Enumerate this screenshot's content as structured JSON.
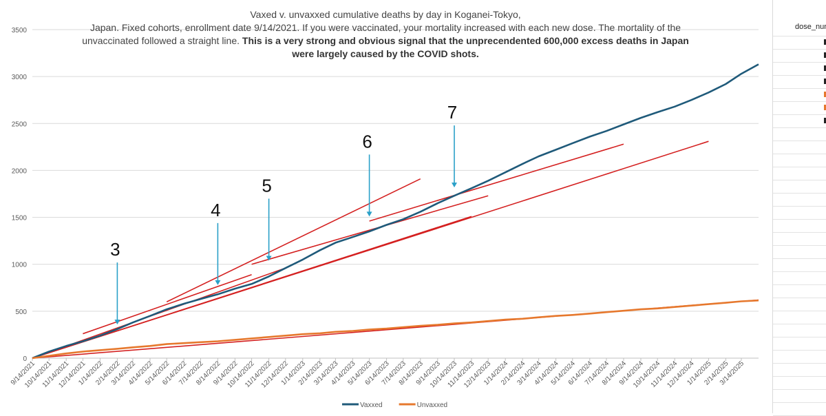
{
  "chart_data": {
    "type": "line",
    "title_lines": [
      {
        "plain": "Vaxed v. unvaxxed cumulative deaths by day in Koganei-Tokyo,",
        "bold": ""
      },
      {
        "plain": "Japan. Fixed cohorts, enrollment date 9/14/2021.  If you were vaccinated, your mortality increased with each new dose. The mortality of the",
        "bold": ""
      },
      {
        "plain": "unvaccinated followed a straight line. ",
        "bold": "This is a very strong and obvious signal that the unprecendented 600,000 excess deaths in Japan"
      },
      {
        "plain": "",
        "bold": "were largely caused by the COVID shots."
      }
    ],
    "xlabel": "",
    "ylabel": "",
    "ylim": [
      0,
      3500
    ],
    "yticks": [
      0,
      500,
      1000,
      1500,
      2000,
      2500,
      3000,
      3500
    ],
    "xlim": [
      "2021-09-14",
      "2025-04-14"
    ],
    "xtick_labels": [
      "9/14/2021",
      "10/14/2021",
      "11/14/2021",
      "12/14/2021",
      "1/14/2022",
      "2/14/2022",
      "3/14/2022",
      "4/14/2022",
      "5/14/2022",
      "6/14/2022",
      "7/14/2022",
      "8/14/2022",
      "9/14/2022",
      "10/14/2022",
      "11/14/2022",
      "12/14/2022",
      "1/14/2023",
      "2/14/2023",
      "3/14/2023",
      "4/14/2023",
      "5/14/2023",
      "6/14/2023",
      "7/14/2023",
      "8/14/2023",
      "9/14/2023",
      "10/14/2023",
      "11/14/2023",
      "12/14/2023",
      "1/14/2024",
      "2/14/2024",
      "3/14/2024",
      "4/14/2024",
      "5/14/2024",
      "6/14/2024",
      "7/14/2024",
      "8/14/2024",
      "9/14/2024",
      "10/14/2024",
      "11/14/2024",
      "12/14/2024",
      "1/14/2025",
      "2/14/2025",
      "3/14/2025"
    ],
    "grid": "horizontal",
    "legend_position": "bottom",
    "series": [
      {
        "name": "Vaxxed",
        "color": "#1f5a7a",
        "x": [
          "2021-09-14",
          "2021-10-14",
          "2021-11-14",
          "2021-12-14",
          "2022-01-14",
          "2022-02-14",
          "2022-03-14",
          "2022-04-14",
          "2022-05-14",
          "2022-06-14",
          "2022-07-14",
          "2022-08-14",
          "2022-09-14",
          "2022-10-14",
          "2022-11-14",
          "2022-12-14",
          "2023-01-14",
          "2023-02-14",
          "2023-03-14",
          "2023-04-14",
          "2023-05-14",
          "2023-06-14",
          "2023-07-14",
          "2023-08-14",
          "2023-09-14",
          "2023-10-14",
          "2023-11-14",
          "2023-12-14",
          "2024-01-14",
          "2024-02-14",
          "2024-03-14",
          "2024-04-14",
          "2024-05-14",
          "2024-06-14",
          "2024-07-14",
          "2024-08-14",
          "2024-09-14",
          "2024-10-14",
          "2024-11-14",
          "2024-12-14",
          "2025-01-14",
          "2025-02-14",
          "2025-03-14",
          "2025-04-14"
        ],
        "y": [
          0,
          70,
          130,
          180,
          240,
          310,
          380,
          450,
          520,
          580,
          630,
          680,
          740,
          790,
          870,
          960,
          1050,
          1150,
          1230,
          1290,
          1350,
          1420,
          1480,
          1560,
          1650,
          1730,
          1810,
          1890,
          1980,
          2070,
          2150,
          2220,
          2290,
          2360,
          2420,
          2490,
          2560,
          2620,
          2680,
          2750,
          2830,
          2920,
          3030,
          3130
        ]
      },
      {
        "name": "Unvaxxed",
        "color": "#e6782d",
        "x": [
          "2021-09-14",
          "2021-10-14",
          "2021-11-14",
          "2021-12-14",
          "2022-01-14",
          "2022-02-14",
          "2022-03-14",
          "2022-04-14",
          "2022-05-14",
          "2022-06-14",
          "2022-07-14",
          "2022-08-14",
          "2022-09-14",
          "2022-10-14",
          "2022-11-14",
          "2022-12-14",
          "2023-01-14",
          "2023-02-14",
          "2023-03-14",
          "2023-04-14",
          "2023-05-14",
          "2023-06-14",
          "2023-07-14",
          "2023-08-14",
          "2023-09-14",
          "2023-10-14",
          "2023-11-14",
          "2023-12-14",
          "2024-01-14",
          "2024-02-14",
          "2024-03-14",
          "2024-04-14",
          "2024-05-14",
          "2024-06-14",
          "2024-07-14",
          "2024-08-14",
          "2024-09-14",
          "2024-10-14",
          "2024-11-14",
          "2024-12-14",
          "2025-01-14",
          "2025-02-14",
          "2025-03-14",
          "2025-04-14"
        ],
        "y": [
          0,
          25,
          50,
          70,
          85,
          100,
          115,
          130,
          150,
          160,
          170,
          180,
          195,
          210,
          225,
          240,
          255,
          265,
          280,
          290,
          305,
          315,
          330,
          345,
          355,
          370,
          380,
          395,
          410,
          420,
          435,
          450,
          460,
          475,
          490,
          505,
          520,
          530,
          545,
          560,
          575,
          590,
          605,
          615
        ]
      }
    ],
    "trend_lines": [
      {
        "x": [
          "2021-09-14",
          "2025-04-14"
        ],
        "y": [
          0,
          620
        ],
        "color": "#d42020"
      },
      {
        "x": [
          "2021-09-14",
          "2023-11-14"
        ],
        "y": [
          0,
          1510
        ],
        "color": "#d42020"
      },
      {
        "x": [
          "2021-09-14",
          "2025-01-14"
        ],
        "y": [
          0,
          2310
        ],
        "color": "#d42020"
      },
      {
        "x": [
          "2021-09-14",
          "2022-12-14"
        ],
        "y": [
          0,
          960
        ],
        "color": "#d42020"
      },
      {
        "x": [
          "2021-12-14",
          "2022-10-14"
        ],
        "y": [
          260,
          890
        ],
        "color": "#d42020"
      },
      {
        "x": [
          "2022-05-14",
          "2023-08-14"
        ],
        "y": [
          600,
          1910
        ],
        "color": "#d42020"
      },
      {
        "x": [
          "2022-10-14",
          "2023-12-14"
        ],
        "y": [
          1000,
          1730
        ],
        "color": "#d42020"
      },
      {
        "x": [
          "2023-05-14",
          "2024-08-14"
        ],
        "y": [
          1460,
          2280
        ],
        "color": "#d42020"
      }
    ],
    "annotations": [
      {
        "label": "3",
        "x": "2022-02-14",
        "y": 300,
        "color": "#2aa0c8"
      },
      {
        "label": "4",
        "x": "2022-08-14",
        "y": 720,
        "color": "#2aa0c8"
      },
      {
        "label": "5",
        "x": "2022-11-14",
        "y": 980,
        "color": "#2aa0c8"
      },
      {
        "label": "6",
        "x": "2023-05-14",
        "y": 1450,
        "color": "#2aa0c8"
      },
      {
        "label": "7",
        "x": "2023-10-14",
        "y": 1760,
        "color": "#2aa0c8"
      }
    ],
    "colors": {
      "grid": "#d9d9d9",
      "axis_text": "#595959",
      "arrow": "#2aa0c8",
      "trend": "#d42020"
    }
  },
  "sheet": {
    "header": "dose_num",
    "fragment_colors": [
      "#222222",
      "#222222",
      "#222222",
      "#222222",
      "#e6782d",
      "#e6782d",
      "#222222"
    ]
  }
}
